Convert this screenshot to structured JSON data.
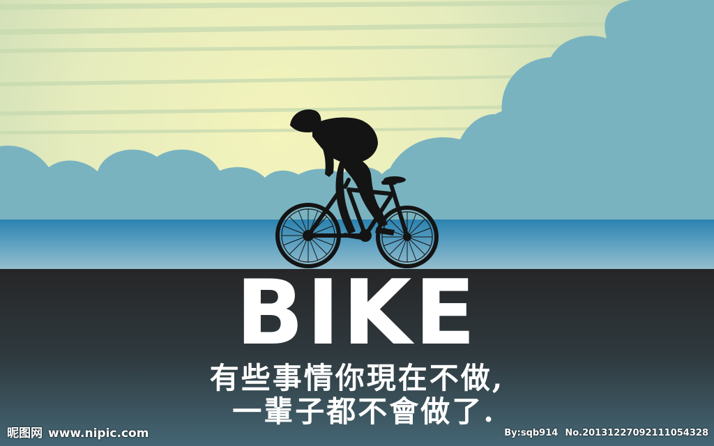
{
  "poster": {
    "headline": "BIKE",
    "tagline_line1": "有些事情你現在不做,",
    "tagline_line2": "一輩子都不會做了."
  },
  "watermark": {
    "brand": "昵图网",
    "site": "www.nipic.com",
    "author": "By:sqb914",
    "number": "No.20131227092111054328"
  },
  "colors": {
    "sky_top": "#d8e3b8",
    "sky_glow": "#f1f3bd",
    "cloud": "#7ab3c0",
    "sea_top": "#2e86b3",
    "sea_bottom": "#8cb9cc",
    "ground_top": "#2a2a2b",
    "ground_bottom": "#3f5e6b",
    "silhouette": "#141414",
    "text": "#ffffff"
  },
  "icons": {
    "cyclist": "cyclist-silhouette"
  }
}
